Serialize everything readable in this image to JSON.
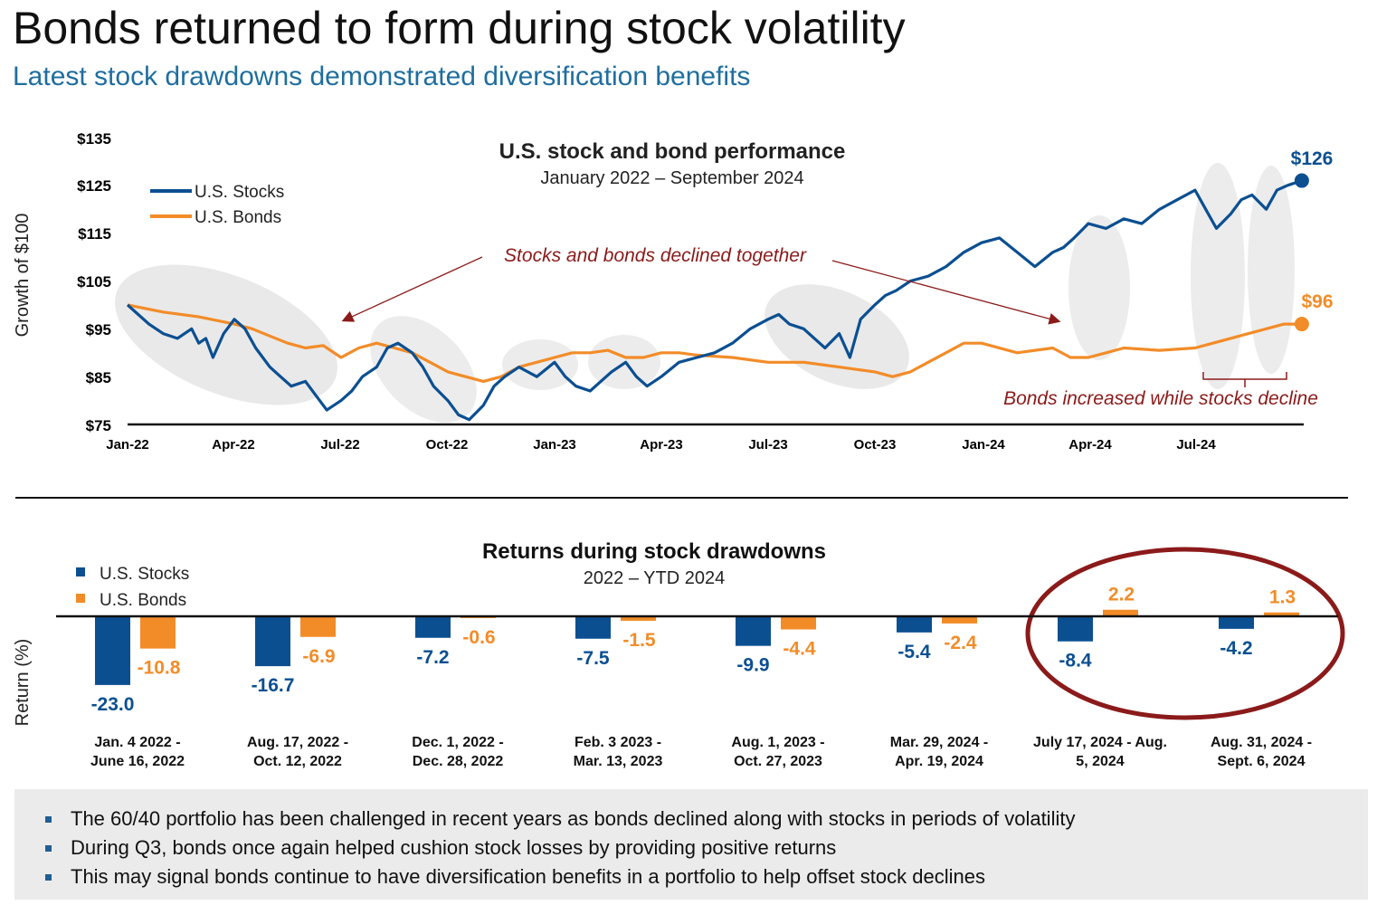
{
  "header": {
    "title": "Bonds returned to form during stock volatility",
    "subtitle": "Latest stock drawdowns demonstrated diversification benefits"
  },
  "colors": {
    "stocks": "#0b4f91",
    "bonds": "#f28c28",
    "annotation": "#8b1a1a",
    "highlight_circle": "#8b1a1a",
    "shade": "#e6e6e6"
  },
  "chart_data": [
    {
      "type": "line",
      "title": "U.S. stock and bond performance",
      "subtitle": "January 2022 – September 2024",
      "ylabel": "Growth of $100",
      "ylim": [
        75,
        135
      ],
      "yticks": [
        "$135",
        "$125",
        "$115",
        "$105",
        "$95",
        "$85",
        "$75"
      ],
      "xticks": [
        "Jan-22",
        "Apr-22",
        "Jul-22",
        "Oct-22",
        "Jan-23",
        "Apr-23",
        "Jul-23",
        "Oct-23",
        "Jan-24",
        "Apr-24",
        "Jul-24"
      ],
      "x_unit": "months since Jan-22",
      "legend_position": "top-left",
      "series": [
        {
          "name": "U.S. Stocks",
          "end_label": "$126",
          "x": [
            0,
            0.3,
            0.6,
            1,
            1.4,
            1.8,
            2,
            2.2,
            2.4,
            2.7,
            3,
            3.3,
            3.6,
            4,
            4.3,
            4.6,
            5,
            5.3,
            5.6,
            6,
            6.3,
            6.6,
            7,
            7.3,
            7.6,
            8,
            8.3,
            8.6,
            9,
            9.3,
            9.6,
            10,
            10.3,
            10.6,
            11,
            11.5,
            12,
            12.3,
            12.6,
            13,
            13.3,
            13.6,
            14,
            14.3,
            14.6,
            15,
            15.5,
            16,
            16.5,
            17,
            17.5,
            18,
            18.3,
            18.6,
            19,
            19.3,
            19.6,
            20,
            20.3,
            20.6,
            21,
            21.3,
            21.6,
            22,
            22.5,
            23,
            23.5,
            24,
            24.5,
            25,
            25.5,
            26,
            26.3,
            26.6,
            27,
            27.5,
            28,
            28.5,
            29,
            29.5,
            30,
            30.3,
            30.6,
            31,
            31.3,
            31.6,
            32,
            32.3,
            32.6,
            33
          ],
          "values": [
            100,
            98,
            96,
            94,
            93,
            95,
            92,
            93,
            89,
            94,
            97,
            95,
            91,
            87,
            85,
            83,
            84,
            81,
            78,
            80,
            82,
            85,
            87,
            91,
            92,
            90,
            87,
            83,
            80,
            77,
            76,
            79,
            83,
            85,
            87,
            85,
            88,
            85,
            83,
            82,
            84,
            86,
            88,
            85,
            83,
            85,
            88,
            89,
            90,
            92,
            95,
            97,
            98,
            96,
            95,
            93,
            91,
            94,
            89,
            97,
            100,
            102,
            103,
            105,
            106,
            108,
            111,
            113,
            114,
            111,
            108,
            111,
            112,
            114,
            117,
            116,
            118,
            117,
            120,
            122,
            124,
            120,
            116,
            119,
            122,
            123,
            120,
            124,
            125,
            126
          ],
          "end_point": {
            "x": 33,
            "y": 126
          }
        },
        {
          "name": "U.S. Bonds",
          "end_label": "$96",
          "x": [
            0,
            1,
            2,
            3,
            3.5,
            4,
            4.5,
            5,
            5.5,
            6,
            6.5,
            7,
            7.5,
            8,
            8.5,
            9,
            9.5,
            10,
            10.5,
            11,
            11.5,
            12,
            12.5,
            13,
            13.5,
            14,
            14.5,
            15,
            15.5,
            16,
            17,
            18,
            19,
            20,
            21,
            21.5,
            22,
            22.5,
            23,
            23.5,
            24,
            25,
            26,
            26.5,
            27,
            27.5,
            28,
            29,
            30,
            30.5,
            31,
            31.5,
            32,
            32.5,
            33
          ],
          "values": [
            100,
            98.5,
            97.5,
            96,
            95,
            93.5,
            92,
            91,
            91.5,
            89,
            91,
            92,
            91,
            90,
            88,
            86,
            85,
            84,
            85,
            87,
            88,
            89,
            90,
            90,
            90.5,
            89,
            89,
            90,
            90,
            89.5,
            89,
            88,
            88,
            87,
            86,
            85,
            86,
            88,
            90,
            92,
            92,
            90,
            91,
            89,
            89,
            90,
            91,
            90.5,
            91,
            92,
            93,
            94,
            95,
            96,
            96
          ],
          "end_point": {
            "x": 33,
            "y": 96
          }
        }
      ],
      "annotations": [
        {
          "text": "Stocks and bonds declined together"
        },
        {
          "text": "Bonds increased while stocks decline"
        }
      ]
    },
    {
      "type": "bar",
      "title": "Returns during stock drawdowns",
      "subtitle": "2022 – YTD 2024",
      "ylabel": "Return (%)",
      "legend_position": "top-left",
      "categories": [
        [
          "Jan. 4 2022 -",
          "June 16, 2022"
        ],
        [
          "Aug. 17, 2022 -",
          "Oct. 12, 2022"
        ],
        [
          "Dec. 1, 2022 -",
          "Dec. 28, 2022"
        ],
        [
          "Feb. 3 2023 -",
          "Mar. 13, 2023"
        ],
        [
          "Aug. 1, 2023 -",
          "Oct. 27, 2023"
        ],
        [
          "Mar. 29, 2024 -",
          "Apr. 19, 2024"
        ],
        [
          "July 17, 2024 - Aug.",
          "5, 2024"
        ],
        [
          "Aug. 31, 2024 -",
          "Sept. 6, 2024"
        ]
      ],
      "series": [
        {
          "name": "U.S. Stocks",
          "values": [
            -23.0,
            -16.7,
            -7.2,
            -7.5,
            -9.9,
            -5.4,
            -8.4,
            -4.2
          ],
          "labels": [
            "-23.0",
            "-16.7",
            "-7.2",
            "-7.5",
            "-9.9",
            "-5.4",
            "-8.4",
            "-4.2"
          ]
        },
        {
          "name": "U.S. Bonds",
          "values": [
            -10.8,
            -6.9,
            -0.6,
            -1.5,
            -4.4,
            -2.4,
            2.2,
            1.3
          ],
          "labels": [
            "-10.8",
            "-6.9",
            "-0.6",
            "-1.5",
            "-4.4",
            "-2.4",
            "2.2",
            "1.3"
          ]
        }
      ],
      "highlighted_categories": [
        6,
        7
      ]
    }
  ],
  "footer": {
    "bullets": [
      "The 60/40 portfolio has been challenged in recent years as bonds declined along with stocks in periods of volatility",
      "During Q3, bonds once again helped cushion stock losses by providing positive returns",
      "This may signal bonds continue to have diversification benefits in a portfolio to help offset stock declines"
    ]
  }
}
